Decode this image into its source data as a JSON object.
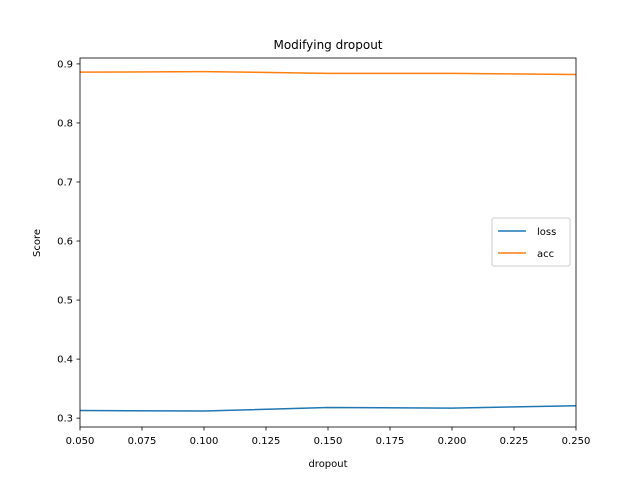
{
  "colors": {
    "background": "#ffffff",
    "axes": "#000000",
    "loss": "#1f77b4",
    "acc": "#ff7f0e",
    "legend_border": "#cccccc"
  },
  "chart_data": {
    "type": "line",
    "title": "Modifying dropout",
    "xlabel": "dropout",
    "ylabel": "Score",
    "xlim": [
      0.05,
      0.25
    ],
    "ylim": [
      0.285,
      0.91
    ],
    "grid": false,
    "legend_position": "center-right",
    "x": [
      0.05,
      0.1,
      0.15,
      0.2,
      0.25
    ],
    "series": [
      {
        "name": "loss",
        "color": "#1f77b4",
        "values": [
          0.313,
          0.312,
          0.318,
          0.317,
          0.321
        ]
      },
      {
        "name": "acc",
        "color": "#ff7f0e",
        "values": [
          0.886,
          0.887,
          0.884,
          0.884,
          0.882
        ]
      }
    ],
    "x_ticks": [
      {
        "value": 0.05,
        "label": "0.050"
      },
      {
        "value": 0.075,
        "label": "0.075"
      },
      {
        "value": 0.1,
        "label": "0.100"
      },
      {
        "value": 0.125,
        "label": "0.125"
      },
      {
        "value": 0.15,
        "label": "0.150"
      },
      {
        "value": 0.175,
        "label": "0.175"
      },
      {
        "value": 0.2,
        "label": "0.200"
      },
      {
        "value": 0.225,
        "label": "0.225"
      },
      {
        "value": 0.25,
        "label": "0.250"
      }
    ],
    "y_ticks": [
      {
        "value": 0.3,
        "label": "0.3"
      },
      {
        "value": 0.4,
        "label": "0.4"
      },
      {
        "value": 0.5,
        "label": "0.5"
      },
      {
        "value": 0.6,
        "label": "0.6"
      },
      {
        "value": 0.7,
        "label": "0.7"
      },
      {
        "value": 0.8,
        "label": "0.8"
      },
      {
        "value": 0.9,
        "label": "0.9"
      }
    ]
  }
}
